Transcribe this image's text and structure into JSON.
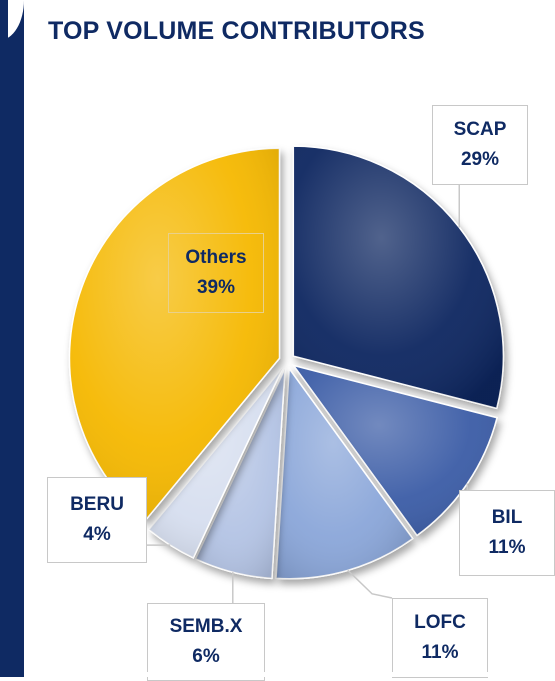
{
  "chart_data": {
    "type": "pie",
    "title": "TOP VOLUME CONTRIBUTORS",
    "slices": [
      {
        "label": "SCAP",
        "value": 29,
        "value_label": "29%",
        "color": "#0d2561"
      },
      {
        "label": "BIL",
        "value": 11,
        "value_label": "11%",
        "color": "#3a5ca6"
      },
      {
        "label": "LOFC",
        "value": 11,
        "value_label": "11%",
        "color": "#8aa6d9"
      },
      {
        "label": "SEMB.X",
        "value": 6,
        "value_label": "6%",
        "color": "#b3c3e4"
      },
      {
        "label": "BERU",
        "value": 4,
        "value_label": "4%",
        "color": "#d6deef"
      },
      {
        "label": "Others",
        "value": 39,
        "value_label": "39%",
        "color": "#f5b800"
      }
    ],
    "legend": "none",
    "data_labels": "callout"
  },
  "colors": {
    "accent_navy": "#0f2a63",
    "others_gold": "#f5b800"
  }
}
